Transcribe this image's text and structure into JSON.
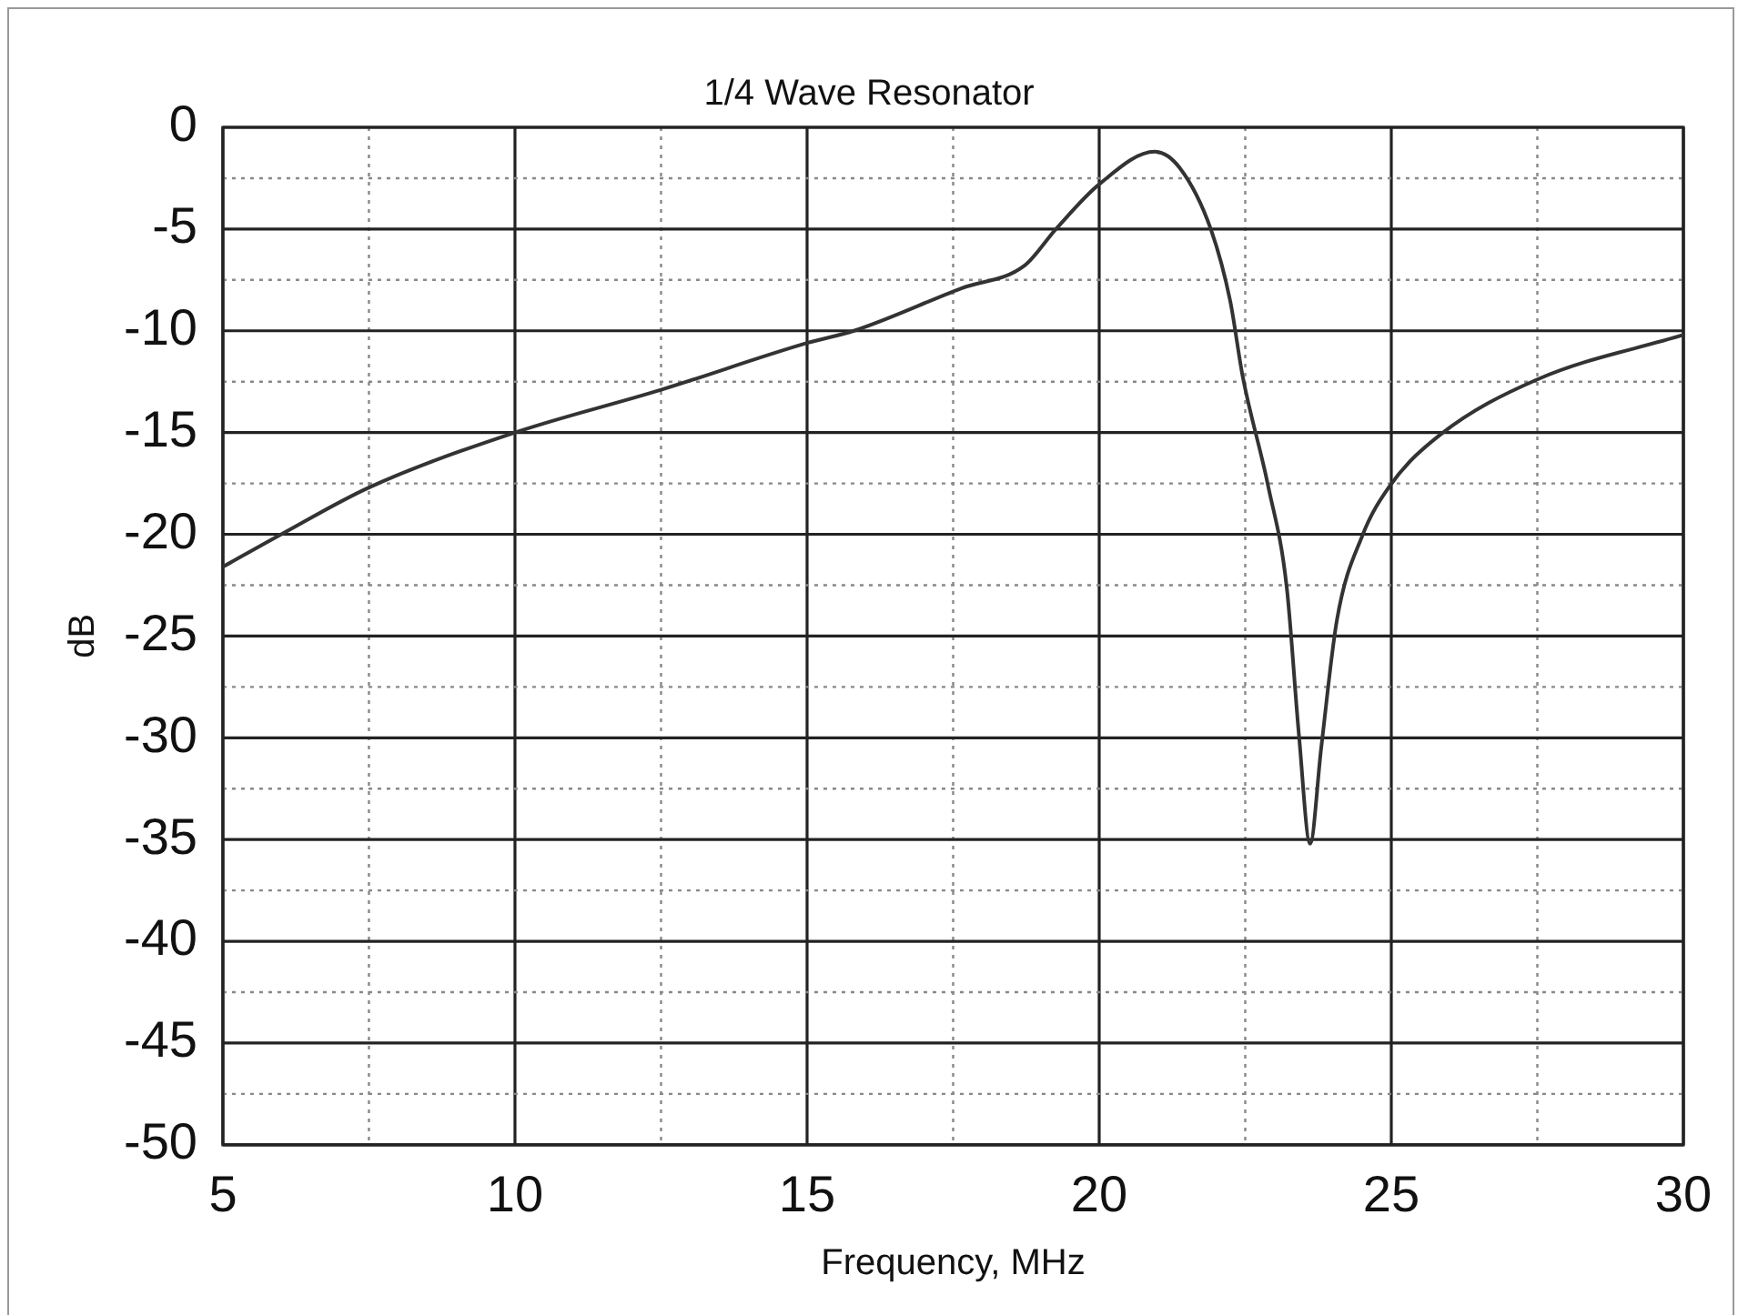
{
  "chart_data": {
    "type": "line",
    "title": "1/4 Wave Resonator",
    "xlabel": "Frequency, MHz",
    "ylabel": "dB",
    "x": [
      5,
      6,
      7.5,
      10,
      12.5,
      15,
      15.8,
      17.65,
      18.72,
      19.26,
      20,
      20.95,
      21.38,
      21.91,
      22.24,
      22.46,
      22.89,
      23.21,
      23.42,
      23.61,
      23.8,
      24.07,
      24.5,
      24.98,
      25.84,
      27.49,
      30
    ],
    "series": [
      {
        "color": "#333333",
        "values": [
          -21.6,
          -20,
          -17.7,
          -15,
          -12.9,
          -10.6,
          -10,
          -7.9,
          -6.8,
          -5,
          -2.8,
          -1.2,
          -2,
          -5,
          -8.5,
          -12.3,
          -17.6,
          -22.6,
          -29.9,
          -35.2,
          -30.5,
          -24.2,
          -20.1,
          -17.6,
          -15.1,
          -12.4,
          -10.2
        ]
      }
    ],
    "xlim": [
      5,
      30
    ],
    "xticks": [
      5,
      {
        "value": 7.5,
        "label": null
      },
      10,
      {
        "value": 12.5,
        "label": null
      },
      15,
      {
        "value": 17.5,
        "label": null
      },
      20,
      {
        "value": 22.5,
        "label": null
      },
      25,
      {
        "value": 27.5,
        "label": null
      },
      30
    ],
    "ylim": [
      -50,
      0
    ],
    "yticks": [
      -50,
      {
        "value": -47.5,
        "label": null
      },
      -45,
      {
        "value": -42.5,
        "label": null
      },
      -40,
      {
        "value": -37.5,
        "label": null
      },
      -35,
      {
        "value": -32.5,
        "label": null
      },
      -30,
      {
        "value": -27.5,
        "label": null
      },
      -25,
      {
        "value": -22.5,
        "label": null
      },
      -20,
      {
        "value": -17.5,
        "label": null
      },
      -15,
      {
        "value": -12.5,
        "label": null
      },
      -10,
      {
        "value": -7.5,
        "label": null
      },
      -5,
      {
        "value": -2.5,
        "label": null
      },
      0
    ],
    "grid": true,
    "marker": "none",
    "line_style": "solid",
    "legend": false
  }
}
